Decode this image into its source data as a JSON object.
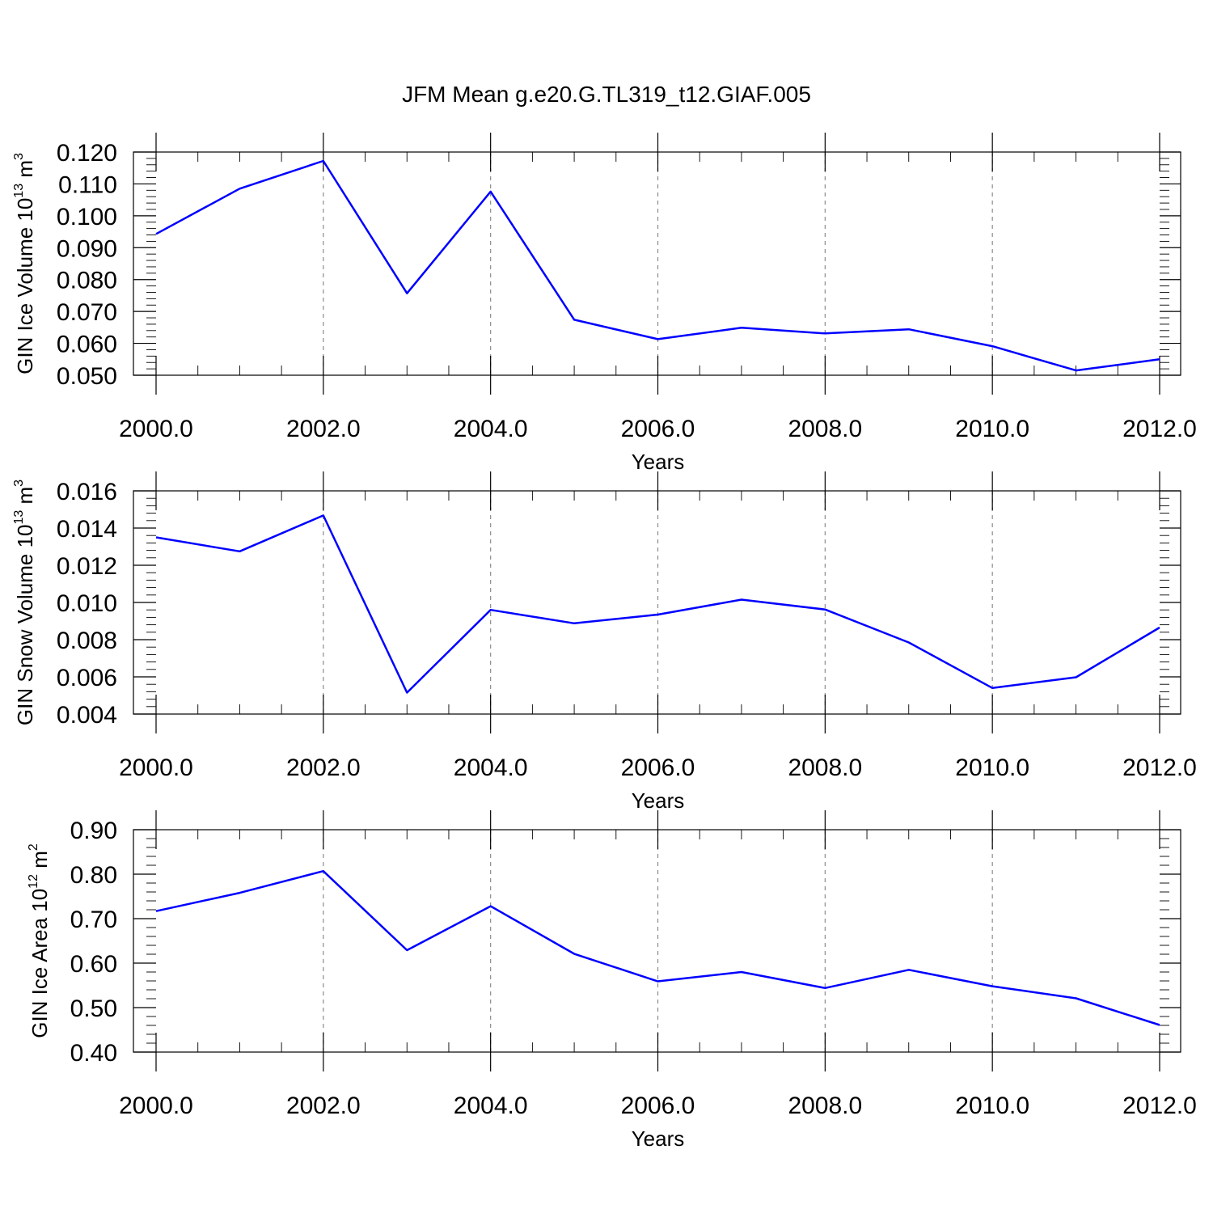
{
  "title": "JFM Mean g.e20.G.TL319_t12.GIAF.005",
  "colors": {
    "line": "#0000ff",
    "grid": "#8c8c8c",
    "axis": "#000000"
  },
  "chart_data": [
    {
      "type": "line",
      "title": "JFM Mean g.e20.G.TL319_t12.GIAF.005",
      "xlabel": "Years",
      "ylabel_main": "GIN Ice Volume 10",
      "ylabel_exp": "13",
      "ylabel_unit": " m",
      "ylabel_unit_exp": "3",
      "xlim": [
        2000,
        2012
      ],
      "ylim": [
        0.05,
        0.12
      ],
      "xticks": [
        2000,
        2002,
        2004,
        2006,
        2008,
        2010,
        2012
      ],
      "xtick_labels": [
        "2000.0",
        "2002.0",
        "2004.0",
        "2006.0",
        "2008.0",
        "2010.0",
        "2012.0"
      ],
      "yticks": [
        0.05,
        0.06,
        0.07,
        0.08,
        0.09,
        0.1,
        0.11,
        0.12
      ],
      "ytick_labels": [
        "0.050",
        "0.060",
        "0.070",
        "0.080",
        "0.090",
        "0.100",
        "0.110",
        "0.120"
      ],
      "grid": "vertical dashed",
      "x": [
        2000,
        2001,
        2002,
        2003,
        2004,
        2005,
        2006,
        2007,
        2008,
        2009,
        2010,
        2011,
        2012
      ],
      "values": [
        0.0943,
        0.1085,
        0.1172,
        0.0757,
        0.1076,
        0.0674,
        0.0613,
        0.0649,
        0.0631,
        0.0644,
        0.0591,
        0.0515,
        0.055
      ]
    },
    {
      "type": "line",
      "xlabel": "Years",
      "ylabel_main": "GIN Snow Volume 10",
      "ylabel_exp": "13",
      "ylabel_unit": " m",
      "ylabel_unit_exp": "3",
      "xlim": [
        2000,
        2012
      ],
      "ylim": [
        0.004,
        0.016
      ],
      "xticks": [
        2000,
        2002,
        2004,
        2006,
        2008,
        2010,
        2012
      ],
      "xtick_labels": [
        "2000.0",
        "2002.0",
        "2004.0",
        "2006.0",
        "2008.0",
        "2010.0",
        "2012.0"
      ],
      "yticks": [
        0.004,
        0.006,
        0.008,
        0.01,
        0.012,
        0.014,
        0.016
      ],
      "ytick_labels": [
        "0.004",
        "0.006",
        "0.008",
        "0.010",
        "0.012",
        "0.014",
        "0.016"
      ],
      "grid": "vertical dashed",
      "x": [
        2000,
        2001,
        2002,
        2003,
        2004,
        2005,
        2006,
        2007,
        2008,
        2009,
        2010,
        2011,
        2012
      ],
      "values": [
        0.0135,
        0.01275,
        0.01468,
        0.00515,
        0.0096,
        0.00888,
        0.00935,
        0.01015,
        0.00962,
        0.00785,
        0.0054,
        0.00598,
        0.00865
      ]
    },
    {
      "type": "line",
      "xlabel": "Years",
      "ylabel_main": "GIN Ice Area 10",
      "ylabel_exp": "12",
      "ylabel_unit": " m",
      "ylabel_unit_exp": "2",
      "xlim": [
        2000,
        2012
      ],
      "ylim": [
        0.4,
        0.9
      ],
      "xticks": [
        2000,
        2002,
        2004,
        2006,
        2008,
        2010,
        2012
      ],
      "xtick_labels": [
        "2000.0",
        "2002.0",
        "2004.0",
        "2006.0",
        "2008.0",
        "2010.0",
        "2012.0"
      ],
      "yticks": [
        0.4,
        0.5,
        0.6,
        0.7,
        0.8,
        0.9
      ],
      "ytick_labels": [
        "0.40",
        "0.50",
        "0.60",
        "0.70",
        "0.80",
        "0.90"
      ],
      "grid": "vertical dashed",
      "x": [
        2000,
        2001,
        2002,
        2003,
        2004,
        2005,
        2006,
        2007,
        2008,
        2009,
        2010,
        2011,
        2012
      ],
      "values": [
        0.717,
        0.758,
        0.807,
        0.629,
        0.728,
        0.621,
        0.559,
        0.58,
        0.544,
        0.585,
        0.548,
        0.521,
        0.461
      ]
    }
  ]
}
